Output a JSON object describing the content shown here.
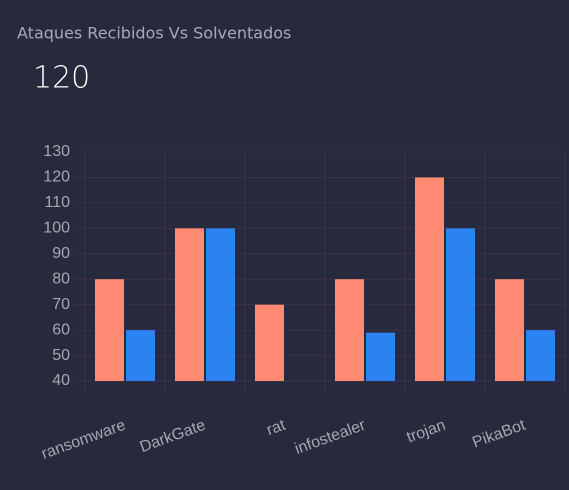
{
  "header": {
    "title": "Ataques Recibidos Vs Solventados",
    "value": 120
  },
  "chart_data": {
    "type": "bar",
    "categories": [
      "ransomware",
      "DarkGate",
      "rat",
      "infostealer",
      "trojan",
      "PikaBot"
    ],
    "series": [
      {
        "color": "#ff8a73",
        "values": [
          80,
          100,
          70,
          80,
          120,
          80
        ]
      },
      {
        "color": "#2b82f0",
        "values": [
          60,
          100,
          null,
          59,
          100,
          60
        ]
      }
    ],
    "ylim": [
      40,
      130
    ],
    "yticks": [
      40,
      50,
      60,
      70,
      80,
      90,
      100,
      110,
      120,
      130
    ],
    "grid": true
  }
}
